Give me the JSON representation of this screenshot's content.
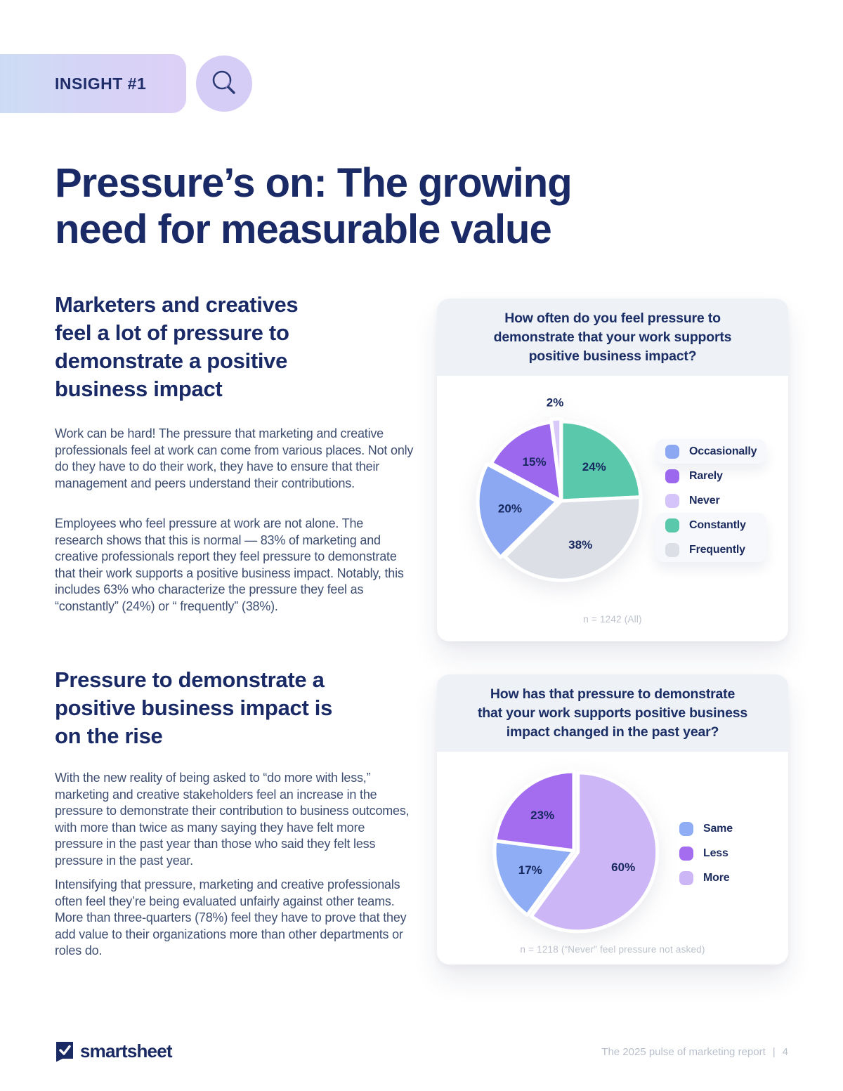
{
  "badge": {
    "label": "INSIGHT #1"
  },
  "title": {
    "lines": [
      "Pressure’s on: The growing",
      "need for measurable value"
    ]
  },
  "sections": [
    {
      "heading_lines": [
        "Marketers and creatives",
        "feel a lot of pressure to",
        "demonstrate a positive",
        "business impact"
      ],
      "paragraphs": [
        "Work can be hard! The pressure that marketing and creative professionals feel at work can come from various places. Not only do they have to do their work, they have to ensure that their management and peers understand their contributions.",
        "Employees who feel pressure at work are not alone. The research shows that this is normal — 83% of marketing and creative professionals report they feel pressure to demonstrate that their work supports a positive business impact. Notably, this includes 63% who characterize the pressure they feel as “constantly” (24%) or “ frequently” (38%)."
      ]
    },
    {
      "heading_lines": [
        "Pressure to demonstrate a",
        "positive business impact is",
        "on the rise"
      ],
      "paragraphs": [
        "With the new reality of being asked to “do more with less,” marketing and creative stakeholders feel an increase in the pressure to demonstrate their contribution to business outcomes, with more than twice as many saying they have felt more pressure in the past year than those who said they felt less pressure in the past year.",
        "Intensifying that pressure, marketing and creative professionals often feel they’re being evaluated unfairly against other teams. More than three-quarters (78%) feel they have to prove that they add value to their organizations more than other departments or roles do."
      ]
    }
  ],
  "chart_data": [
    {
      "type": "pie",
      "title": "How often do you feel pressure to demonstrate that your work supports positive business impact?",
      "title_lines": [
        "How often do you feel pressure to",
        "demonstrate that your work supports",
        "positive business impact?"
      ],
      "legend_position": "right",
      "slices": [
        {
          "label": "Constantly",
          "value": 24,
          "color": "#5ac8ab"
        },
        {
          "label": "Frequently",
          "value": 38,
          "color": "#dcdfe6"
        },
        {
          "label": "Occasionally",
          "value": 20,
          "color": "#8ca8f3",
          "explode": 6
        },
        {
          "label": "Rarely",
          "value": 15,
          "color": "#9b68ee"
        },
        {
          "label": "Never",
          "value": 2,
          "color": "#d8c9f8",
          "explode": 4,
          "label_outside": true
        }
      ],
      "legend": [
        {
          "label": "Occasionally",
          "color": "#8ca8f3",
          "highlight": true
        },
        {
          "label": "Rarely",
          "color": "#9b68ee",
          "highlight": false
        },
        {
          "label": "Never",
          "color": "#d4c4f9",
          "highlight": false
        },
        {
          "label": "Constantly",
          "color": "#5ac8ab",
          "highlight": true
        },
        {
          "label": "Frequently",
          "color": "#dcdfe6",
          "highlight": true
        }
      ],
      "note": "n = 1242 (All)"
    },
    {
      "type": "pie",
      "title": "How has that pressure to demonstrate that your work supports positive business impact changed in the past year?",
      "title_lines": [
        "How has that pressure to demonstrate",
        "that your work supports positive business",
        "impact changed in the past year?"
      ],
      "legend_position": "right",
      "slices": [
        {
          "label": "More",
          "value": 60,
          "color": "#ccb6f6",
          "explode": 6
        },
        {
          "label": "Same",
          "value": 17,
          "color": "#8fadf4"
        },
        {
          "label": "Less",
          "value": 23,
          "color": "#a46df0"
        }
      ],
      "legend": [
        {
          "label": "Same",
          "color": "#8fadf4",
          "highlight": false
        },
        {
          "label": "Less",
          "color": "#a46df0",
          "highlight": false
        },
        {
          "label": "More",
          "color": "#ccb6f6",
          "highlight": false
        }
      ],
      "note": "n = 1218 (“Never” feel pressure not asked)"
    }
  ],
  "footer": {
    "brand": "smartsheet",
    "report_title": "The 2025 pulse of marketing report",
    "separator": "|",
    "page_number": "4"
  }
}
